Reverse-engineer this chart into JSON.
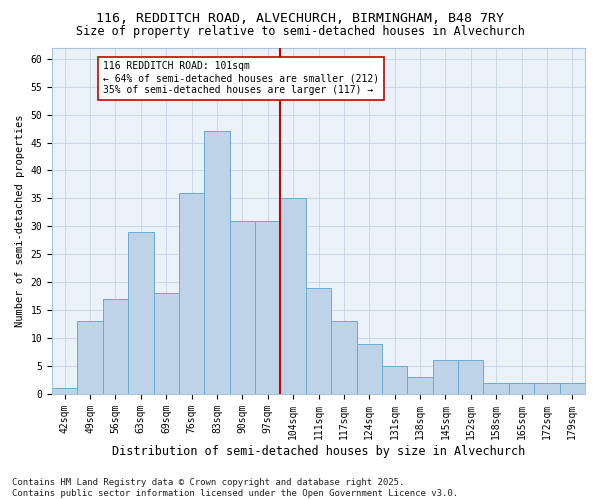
{
  "title1": "116, REDDITCH ROAD, ALVECHURCH, BIRMINGHAM, B48 7RY",
  "title2": "Size of property relative to semi-detached houses in Alvechurch",
  "xlabel": "Distribution of semi-detached houses by size in Alvechurch",
  "ylabel": "Number of semi-detached properties",
  "categories": [
    "42sqm",
    "49sqm",
    "56sqm",
    "63sqm",
    "69sqm",
    "76sqm",
    "83sqm",
    "90sqm",
    "97sqm",
    "104sqm",
    "111sqm",
    "117sqm",
    "124sqm",
    "131sqm",
    "138sqm",
    "145sqm",
    "152sqm",
    "158sqm",
    "165sqm",
    "172sqm",
    "179sqm"
  ],
  "values": [
    1,
    13,
    17,
    29,
    18,
    36,
    47,
    31,
    31,
    35,
    19,
    13,
    9,
    5,
    3,
    6,
    6,
    2,
    2,
    2,
    2
  ],
  "bar_color": "#bed3e8",
  "bar_edge_color": "#6aaad4",
  "vline_color": "#cc0000",
  "annotation_text": "116 REDDITCH ROAD: 101sqm\n← 64% of semi-detached houses are smaller (212)\n35% of semi-detached houses are larger (117) →",
  "annotation_box_facecolor": "#ffffff",
  "annotation_box_edgecolor": "#cc0000",
  "footnote": "Contains HM Land Registry data © Crown copyright and database right 2025.\nContains public sector information licensed under the Open Government Licence v3.0.",
  "ylim": [
    0,
    62
  ],
  "yticks": [
    0,
    5,
    10,
    15,
    20,
    25,
    30,
    35,
    40,
    45,
    50,
    55,
    60
  ],
  "grid_color": "#c8d8ea",
  "bg_color": "#eaf1f9",
  "title1_fontsize": 9.5,
  "title2_fontsize": 8.5,
  "xlabel_fontsize": 8.5,
  "ylabel_fontsize": 7.5,
  "tick_fontsize": 7,
  "annot_fontsize": 7,
  "footnote_fontsize": 6.5,
  "vline_pos": 8.5
}
